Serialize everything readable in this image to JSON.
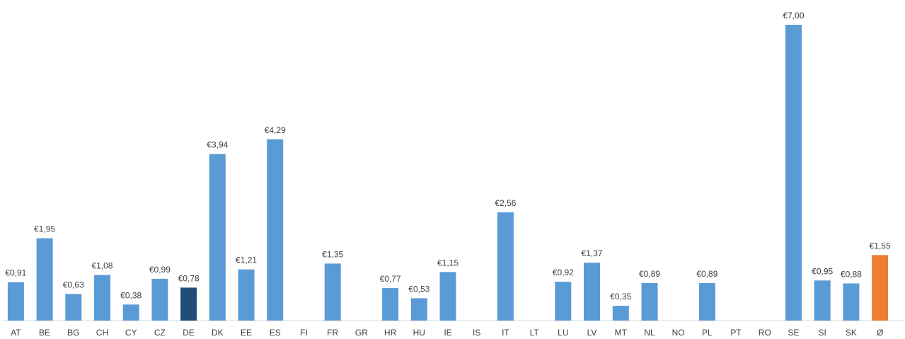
{
  "chart_data": {
    "type": "bar",
    "title": "",
    "xlabel": "",
    "ylabel": "",
    "ylim": [
      0,
      7.4
    ],
    "grid": false,
    "categories": [
      "AT",
      "BE",
      "BG",
      "CH",
      "CY",
      "CZ",
      "DE",
      "DK",
      "EE",
      "ES",
      "FI",
      "FR",
      "GR",
      "HR",
      "HU",
      "IE",
      "IS",
      "IT",
      "LT",
      "LU",
      "LV",
      "MT",
      "NL",
      "NO",
      "PL",
      "PT",
      "RO",
      "SE",
      "SI",
      "SK",
      "Ø"
    ],
    "values": [
      0.91,
      1.95,
      0.63,
      1.08,
      0.38,
      0.99,
      0.78,
      3.94,
      1.21,
      4.29,
      null,
      1.35,
      null,
      0.77,
      0.53,
      1.15,
      null,
      2.56,
      null,
      0.92,
      1.37,
      0.35,
      0.89,
      null,
      0.89,
      null,
      null,
      7.0,
      0.95,
      0.88,
      1.55
    ],
    "labels": [
      "€0,91",
      "€1,95",
      "€0,63",
      "€1,08",
      "€0,38",
      "€0,99",
      "€0,78",
      "€3,94",
      "€1,21",
      "€4,29",
      "",
      "€1,35",
      "",
      "€0,77",
      "€0,53",
      "€1,15",
      "",
      "€2,56",
      "",
      "€0,92",
      "€1,37",
      "€0,35",
      "€0,89",
      "",
      "€0,89",
      "",
      "",
      "€7,00",
      "€0,95",
      "€0,88",
      "€1,55"
    ],
    "colors": {
      "default": "#5b9bd5",
      "highlight": "#1f4e79",
      "average": "#ed7d31",
      "axis": "#d9d9d9",
      "text": "#404040"
    },
    "highlight_category": "DE",
    "average_category": "Ø"
  }
}
